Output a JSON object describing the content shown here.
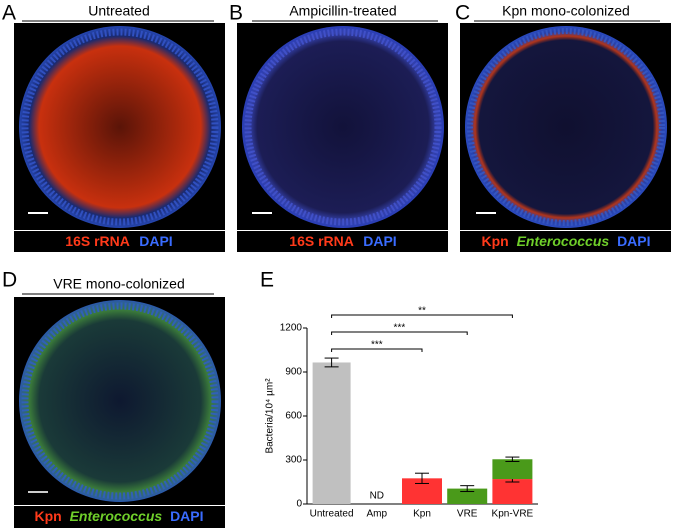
{
  "panels": [
    {
      "label": "A",
      "title": "Untreated",
      "stain": [
        "16S rRNA",
        "DAPI"
      ]
    },
    {
      "label": "B",
      "title": "Ampicillin-treated",
      "stain": [
        "16S rRNA",
        "DAPI"
      ]
    },
    {
      "label": "C",
      "title": "Kpn mono-colonized",
      "stain": [
        "Kpn",
        "Enterococcus",
        "DAPI"
      ]
    },
    {
      "label": "D",
      "title": "VRE mono-colonized",
      "stain": [
        "Kpn",
        "Enterococcus",
        "DAPI"
      ]
    }
  ],
  "chart_data": {
    "type": "bar",
    "panel_label": "E",
    "stacked": true,
    "y_label": "Bacteria/10⁴ µm²",
    "categories": [
      "Untreated",
      "Amp",
      "Kpn",
      "VRE",
      "Kpn-VRE"
    ],
    "series": [
      {
        "color": "#c0c0c0",
        "values": [
          965,
          null,
          null,
          null,
          null
        ],
        "errors": [
          30,
          null,
          null,
          null,
          null
        ]
      },
      {
        "color": "#ff3333",
        "values": [
          null,
          null,
          175,
          null,
          170
        ],
        "errors": [
          null,
          null,
          35,
          null,
          20
        ]
      },
      {
        "color": "#4a9a1a",
        "values": [
          null,
          null,
          null,
          105,
          135
        ],
        "errors": [
          null,
          null,
          null,
          20,
          15
        ]
      }
    ],
    "ylim": [
      0,
      1200
    ],
    "yticks": [
      0,
      300,
      600,
      900,
      1200
    ],
    "annotations": [
      {
        "text": "ND",
        "category": "Amp"
      }
    ],
    "significance": [
      {
        "from": "Untreated",
        "to": "Kpn",
        "label": "***"
      },
      {
        "from": "Untreated",
        "to": "VRE",
        "label": "***"
      },
      {
        "from": "Untreated",
        "to": "Kpn-VRE",
        "label": "**"
      }
    ]
  }
}
